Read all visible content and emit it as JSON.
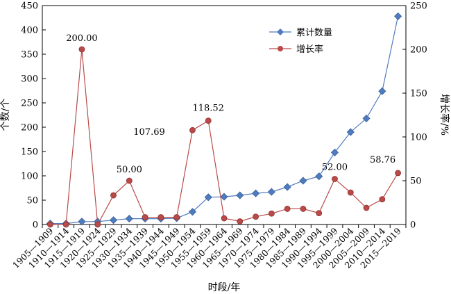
{
  "chart_data": {
    "type": "line",
    "categories": [
      "1905—1909",
      "1910—1914",
      "1915—1919",
      "1920—1924",
      "1925—1929",
      "1930—1934",
      "1935—1939",
      "1940—1944",
      "1945—1949",
      "1950—1954",
      "1955—1959",
      "1960—1964",
      "1965—1969",
      "1970—1974",
      "1975—1979",
      "1980—1984",
      "1985—1989",
      "1990—1994",
      "1995—1999",
      "2000—2004",
      "2005—2009",
      "2010—2014",
      "2015—2019"
    ],
    "xlabel": "时段/年",
    "ylabel_left": "个数/个",
    "ylabel_right": "增长率/%",
    "ylim_left": [
      0,
      450
    ],
    "yticks_left": [
      0,
      50,
      100,
      150,
      200,
      250,
      300,
      350,
      400,
      450
    ],
    "ylim_right": [
      0,
      250
    ],
    "yticks_right": [
      0,
      50,
      100,
      150,
      200,
      250
    ],
    "legend_position": "top-right",
    "grid": false,
    "series": [
      {
        "name": "累计数量",
        "axis": "left",
        "color": "#4f7bbf",
        "marker": "diamond",
        "values": [
          2,
          2,
          6,
          6,
          9,
          12,
          12,
          12,
          13,
          26,
          56,
          57,
          60,
          64,
          67,
          77,
          90,
          99,
          148,
          190,
          218,
          274,
          428
        ]
      },
      {
        "name": "增长率",
        "axis": "right",
        "color": "#b94a48",
        "marker": "circle",
        "values": [
          0,
          0,
          200,
          0,
          33.3,
          50,
          8.3,
          8.3,
          8.3,
          107.69,
          118.52,
          7.1,
          3.6,
          8.9,
          12.5,
          17.9,
          17.9,
          13,
          52,
          36.5,
          19,
          28.8,
          58.76
        ]
      }
    ],
    "annotations": [
      {
        "series": 1,
        "index": 2,
        "text": "200.00"
      },
      {
        "series": 1,
        "index": 5,
        "text": "50.00"
      },
      {
        "series": 1,
        "index": 9,
        "text": "107.69"
      },
      {
        "series": 1,
        "index": 10,
        "text": "118.52"
      },
      {
        "series": 1,
        "index": 18,
        "text": "52.00"
      },
      {
        "series": 1,
        "index": 22,
        "text": "58.76"
      }
    ]
  }
}
